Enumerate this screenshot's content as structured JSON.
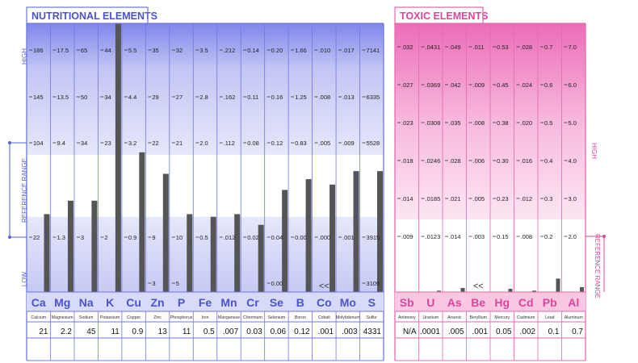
{
  "chart_data": [
    {
      "type": "bar",
      "title": "NUTRITIONAL ELEMENTS",
      "range_labels": {
        "high": "HIGH",
        "low": "LOW",
        "reference": "REFERENCE   RANGE"
      },
      "symbols": [
        "Ca",
        "Mg",
        "Na",
        "K",
        "Cu",
        "Zn",
        "P",
        "Fe",
        "Mn",
        "Cr",
        "Se",
        "B",
        "Co",
        "Mo",
        "S"
      ],
      "names": [
        "Calcium",
        "Magnesium",
        "Sodium",
        "Potassium",
        "Copper",
        "Zinc",
        "Phosphorus",
        "Iron",
        "Manganese",
        "Chromium",
        "Selenium",
        "Boron",
        "Cobalt",
        "Molybdenum",
        "Sulfur"
      ],
      "results": [
        "21",
        "2.2",
        "45",
        "11",
        "0.9",
        "13",
        "11",
        "0.5",
        ".007",
        "0.03",
        "0.06",
        "0.12",
        ".001",
        ".003",
        "4331"
      ],
      "scale_labels": [
        [
          "186",
          "17.5",
          "65",
          "44",
          "5.5",
          "35",
          "32",
          "3.5",
          ".212",
          "0.14",
          "0.20",
          "1.66",
          ".010",
          ".017",
          "7141"
        ],
        [
          "145",
          "13.5",
          "50",
          "34",
          "4.4",
          "29",
          "27",
          "2.8",
          ".162",
          "0.11",
          "0.16",
          "1.25",
          ".008",
          ".013",
          "6335"
        ],
        [
          "104",
          "9.4",
          "34",
          "23",
          "3.2",
          "22",
          "21",
          "2.0",
          ".112",
          "0.08",
          "0.12",
          "0.83",
          ".005",
          ".009",
          "5528"
        ],
        [
          "22",
          "1.3",
          "3",
          "2",
          "0.9",
          "9",
          "10",
          "0.5",
          ".012",
          "0.02",
          "0.04",
          "0.00",
          ".000",
          ".001",
          "3915"
        ]
      ],
      "low_labels": [
        "",
        "",
        "",
        "",
        "",
        "3",
        "5",
        "",
        "",
        "",
        "0.00",
        "",
        "",
        "",
        "3109"
      ],
      "below_range_marks": [
        "",
        "",
        "",
        "",
        "",
        "",
        "",
        "",
        "",
        "",
        "",
        "",
        "<<",
        "",
        ""
      ],
      "bar_levels": [
        0.29,
        0.34,
        0.34,
        1.0,
        0.52,
        0.44,
        0.29,
        0.28,
        0.29,
        0.25,
        0.38,
        0.42,
        0.4,
        0.45,
        0.45
      ],
      "band_levels": {
        "high": 0.84,
        "reference_top": 0.51,
        "reference_bottom": 0.28
      }
    },
    {
      "type": "bar",
      "title": "TOXIC ELEMENTS",
      "range_labels": {
        "high": "HIGH",
        "reference": "REFERENCE   RANGE"
      },
      "symbols": [
        "Sb",
        "U",
        "As",
        "Be",
        "Hg",
        "Cd",
        "Pb",
        "Al"
      ],
      "names": [
        "Antimony",
        "Uranium",
        "Arsenic",
        "Beryllium",
        "Mercury",
        "Cadmium",
        "Lead",
        "Aluminum"
      ],
      "results": [
        "N/A",
        ".0001",
        ".005",
        ".001",
        "0.05",
        ".002",
        "0.1",
        "0.7"
      ],
      "scale_labels": [
        [
          ".032",
          ".0431",
          ".049",
          ".011",
          "0.53",
          ".028",
          "0.7",
          "7.0"
        ],
        [
          ".027",
          ".0369",
          ".042",
          ".009",
          "0.45",
          ".024",
          "0.6",
          "6.0"
        ],
        [
          ".023",
          ".0308",
          ".035",
          ".008",
          "0.38",
          ".020",
          "0.5",
          "5.0"
        ],
        [
          ".018",
          ".0246",
          ".028",
          ".006",
          "0.30",
          ".016",
          "0.4",
          "4.0"
        ],
        [
          ".014",
          ".0185",
          ".021",
          ".005",
          "0.23",
          ".012",
          "0.3",
          "3.0"
        ],
        [
          ".009",
          ".0123",
          ".014",
          ".003",
          "0.15",
          ".008",
          "0.2",
          "2.0"
        ]
      ],
      "bar_levels": [
        0,
        0.005,
        0.015,
        0,
        0.012,
        0.005,
        0.05,
        0.018
      ],
      "below_range_marks": [
        "",
        "",
        "",
        "<<",
        "",
        "",
        "",
        ""
      ],
      "band_levels": {
        "high": 0.62,
        "reference_top": 0.27
      }
    }
  ]
}
